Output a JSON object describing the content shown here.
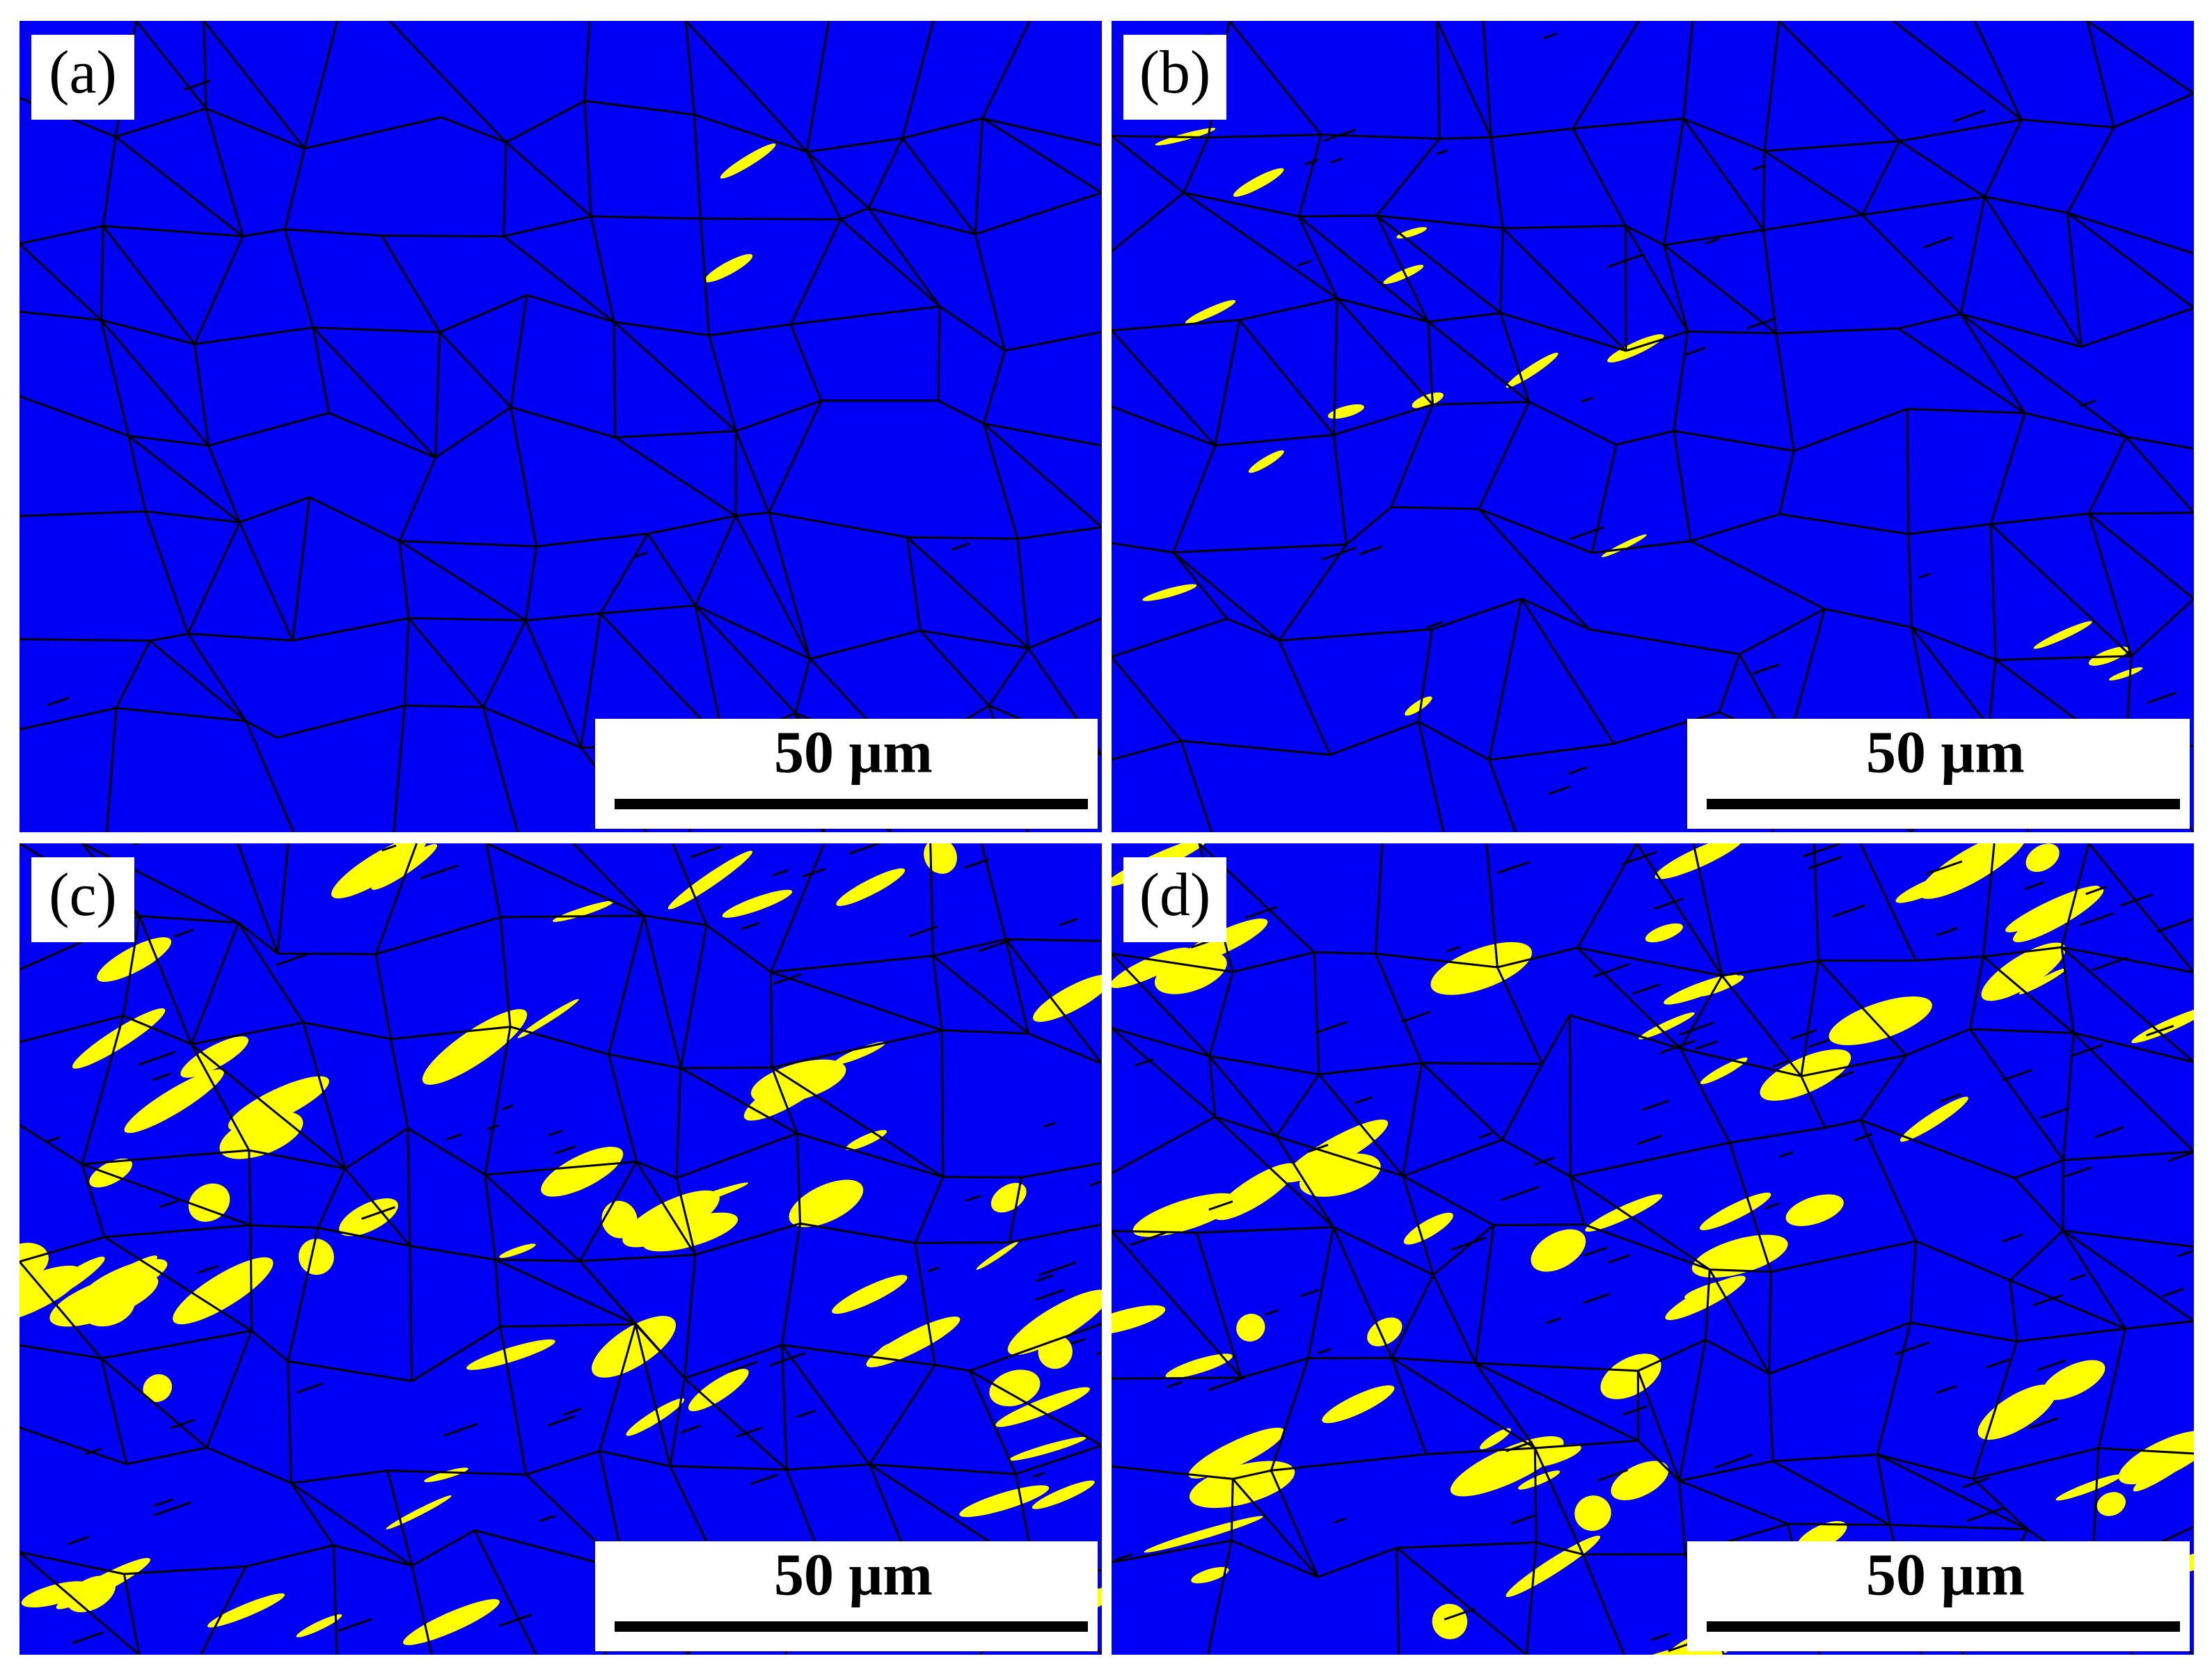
{
  "panels": [
    {
      "label": "(a)",
      "scale_bar": "50 μm"
    },
    {
      "label": "(b)",
      "scale_bar": "50 μm"
    },
    {
      "label": "(c)",
      "scale_bar": "50 μm"
    },
    {
      "label": "(d)",
      "scale_bar": "50 μm"
    }
  ]
}
